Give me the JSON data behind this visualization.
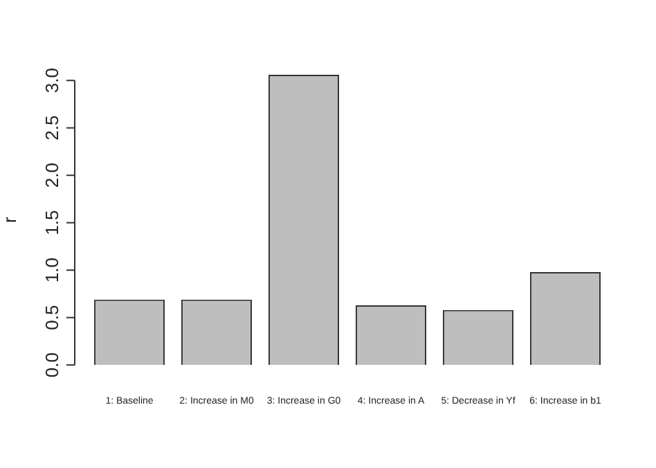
{
  "chart_data": {
    "type": "bar",
    "ylabel": "r",
    "categories": [
      "1: Baseline",
      "2: Increase in M0",
      "3: Increase in G0",
      "4: Increase in A",
      "5: Decrease in Yf",
      "6: Increase in b1"
    ],
    "values": [
      0.69,
      0.69,
      3.06,
      0.63,
      0.58,
      0.98
    ],
    "color": "#bebebe",
    "ylim": [
      0,
      3.06
    ],
    "yticks": [
      {
        "value": 0,
        "label": "0.0"
      },
      0.5,
      {
        "value": 1,
        "label": "1.0"
      },
      1.5,
      {
        "value": 2,
        "label": "2.0"
      },
      2.5,
      {
        "value": 3,
        "label": "3.0"
      }
    ],
    "grid": false
  }
}
